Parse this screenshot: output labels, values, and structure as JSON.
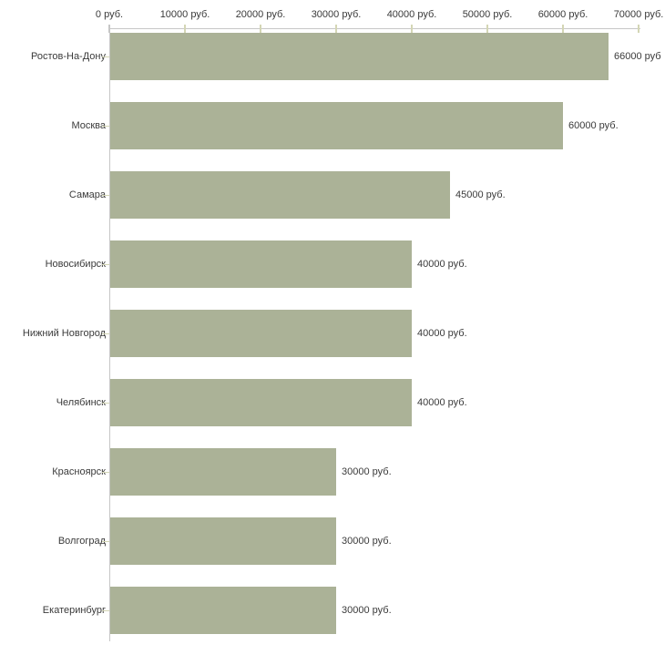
{
  "chart_data": {
    "type": "bar",
    "orientation": "horizontal",
    "title": "",
    "categories": [
      "Ростов-На-Дону",
      "Москва",
      "Самара",
      "Новосибирск",
      "Нижний Новгород",
      "Челябинск",
      "Красноярск",
      "Волгоград",
      "Екатеринбург"
    ],
    "values": [
      66000,
      60000,
      45000,
      40000,
      40000,
      40000,
      30000,
      30000,
      30000
    ],
    "value_labels": [
      "66000 руб",
      "60000 руб.",
      "45000 руб.",
      "40000 руб.",
      "40000 руб.",
      "40000 руб.",
      "30000 руб.",
      "30000 руб.",
      "30000 руб."
    ],
    "x_axis": {
      "position": "top",
      "range": [
        0,
        70000
      ],
      "tick_values": [
        0,
        10000,
        20000,
        30000,
        40000,
        50000,
        60000,
        70000
      ],
      "tick_labels": [
        "0 руб.",
        "10000 руб.",
        "20000 руб.",
        "30000 руб.",
        "40000 руб.",
        "50000 руб.",
        "60000 руб.",
        "70000 руб."
      ]
    },
    "grid": false,
    "legend": "none",
    "colors": {
      "bar": "#abb297",
      "axis": "#c6c6c6",
      "tick": "#d4d6b5",
      "text": "#3a3a3a",
      "background": "#ffffff"
    }
  }
}
